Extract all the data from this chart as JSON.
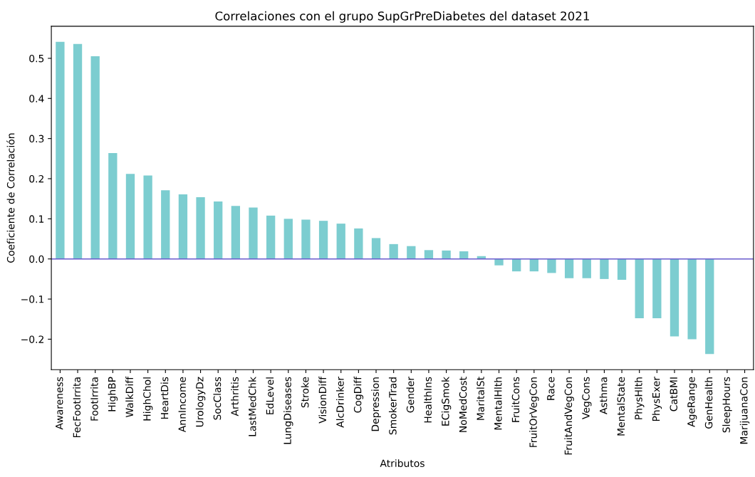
{
  "chart_data": {
    "type": "bar",
    "title": "Correlaciones con el grupo SupGrPreDiabetes del dataset 2021",
    "xlabel": "Atributos",
    "ylabel": "Coeficiente de Correlación",
    "categories": [
      "Awareness",
      "FecFootIrrita",
      "FootIrrita",
      "HighBP",
      "WalkDiff",
      "HighChol",
      "HeartDis",
      "AnnIncome",
      "UrologyDz",
      "SocClass",
      "Arthritis",
      "LastMedChk",
      "EdLevel",
      "LungDiseases",
      "Stroke",
      "VisionDiff",
      "AlcDrinker",
      "CogDiff",
      "Depression",
      "SmokerTrad",
      "Gender",
      "HealthIns",
      "ECigSmok",
      "NoMedCost",
      "MaritalSt",
      "MentalHlth",
      "FruitCons",
      "FruitOrVegCon",
      "Race",
      "FruitAndVegCon",
      "VegCons",
      "Asthma",
      "MentalState",
      "PhysHlth",
      "PhysExer",
      "CatBMI",
      "AgeRange",
      "GenHealth",
      "SleepHours",
      "MarijuanaCon"
    ],
    "values": [
      0.541,
      0.536,
      0.505,
      0.264,
      0.212,
      0.208,
      0.171,
      0.161,
      0.154,
      0.143,
      0.132,
      0.128,
      0.108,
      0.1,
      0.098,
      0.095,
      0.088,
      0.076,
      0.052,
      0.037,
      0.032,
      0.022,
      0.021,
      0.019,
      0.007,
      -0.016,
      -0.031,
      -0.031,
      -0.035,
      -0.048,
      -0.048,
      -0.05,
      -0.052,
      -0.148,
      -0.148,
      -0.193,
      -0.2,
      -0.237,
      null,
      null
    ],
    "color": "#7ccdd0",
    "ylim": [
      -0.276,
      0.58
    ],
    "yticks": [
      {
        "value": -0.2,
        "label": "−0.2"
      },
      {
        "value": -0.1,
        "label": "−0.1"
      },
      {
        "value": 0,
        "label": "0.0"
      },
      0.1,
      0.2,
      0.3,
      0.4,
      0.5
    ],
    "ref_lines": [
      {
        "axis": "y",
        "value": 0,
        "color": "#6a5acd"
      }
    ],
    "grid": false,
    "legend": false
  }
}
